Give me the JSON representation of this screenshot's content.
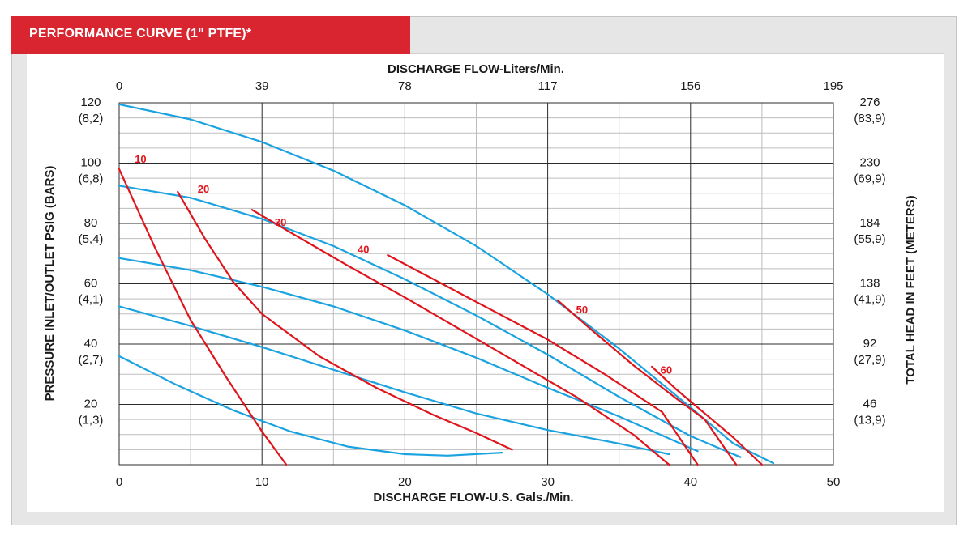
{
  "header": {
    "title": "PERFORMANCE CURVE  (1\" PTFE)*"
  },
  "chart_data": {
    "type": "line",
    "title": "PERFORMANCE CURVE  (1\" PTFE)*",
    "xlabel": "DISCHARGE FLOW-U.S. Gals./Min.",
    "x2label": "DISCHARGE FLOW-Liters/Min.",
    "ylabel": "PRESSURE INLET/OUTLET PSIG (BARS)",
    "y2label": "TOTAL HEAD IN FEET (METERS)",
    "xlim": [
      0,
      50
    ],
    "ylim": [
      0,
      120
    ],
    "grid": true,
    "x_ticks": [
      {
        "value": 0,
        "label": "0"
      },
      {
        "value": 10,
        "label": "10"
      },
      {
        "value": 20,
        "label": "20"
      },
      {
        "value": 30,
        "label": "30"
      },
      {
        "value": 40,
        "label": "40"
      },
      {
        "value": 50,
        "label": "50"
      }
    ],
    "x2_ticks": [
      {
        "value": 0,
        "label": "0"
      },
      {
        "value": 10,
        "label": "39"
      },
      {
        "value": 20,
        "label": "78"
      },
      {
        "value": 30,
        "label": "117"
      },
      {
        "value": 40,
        "label": "156"
      },
      {
        "value": 50,
        "label": "195"
      }
    ],
    "y_ticks": [
      {
        "value": 20,
        "label": "20",
        "sub": "(1,3)"
      },
      {
        "value": 40,
        "label": "40",
        "sub": "(2,7)"
      },
      {
        "value": 60,
        "label": "60",
        "sub": "(4,1)"
      },
      {
        "value": 80,
        "label": "80",
        "sub": "(5,4)"
      },
      {
        "value": 100,
        "label": "100",
        "sub": "(6,8)"
      },
      {
        "value": 120,
        "label": "120",
        "sub": "(8,2)"
      }
    ],
    "y2_ticks": [
      {
        "value": 20,
        "label": "46",
        "sub": "(13,9)"
      },
      {
        "value": 40,
        "label": "92",
        "sub": "(27,9)"
      },
      {
        "value": 60,
        "label": "138",
        "sub": "(41,9)"
      },
      {
        "value": 80,
        "label": "184",
        "sub": "(55,9)"
      },
      {
        "value": 100,
        "label": "230",
        "sub": "(69,9)"
      },
      {
        "value": 120,
        "label": "276",
        "sub": "(83,9)"
      }
    ],
    "series": [
      {
        "kind": "pressure-curve",
        "color": "#1aa3e0",
        "points": [
          [
            0,
            119.5
          ],
          [
            5,
            114.5
          ],
          [
            10,
            107
          ],
          [
            15,
            97.5
          ],
          [
            20,
            86
          ],
          [
            25,
            72.5
          ],
          [
            30,
            56.5
          ],
          [
            35,
            38.5
          ],
          [
            40,
            19
          ],
          [
            43,
            7
          ],
          [
            45.8,
            0.5
          ]
        ]
      },
      {
        "kind": "pressure-curve",
        "color": "#1aa3e0",
        "points": [
          [
            0,
            92.5
          ],
          [
            5,
            88.5
          ],
          [
            10,
            81.5
          ],
          [
            15,
            72.5
          ],
          [
            20,
            61.5
          ],
          [
            25,
            49.5
          ],
          [
            30,
            36.5
          ],
          [
            35,
            22.5
          ],
          [
            40,
            9.5
          ],
          [
            43.5,
            2.5
          ]
        ]
      },
      {
        "kind": "pressure-curve",
        "color": "#1aa3e0",
        "points": [
          [
            0,
            68.5
          ],
          [
            5,
            64.5
          ],
          [
            10,
            59
          ],
          [
            15,
            52.5
          ],
          [
            20,
            44.5
          ],
          [
            25,
            35.5
          ],
          [
            30,
            25.5
          ],
          [
            35,
            16
          ],
          [
            40.5,
            4.5
          ]
        ]
      },
      {
        "kind": "pressure-curve",
        "color": "#1aa3e0",
        "points": [
          [
            0,
            52.5
          ],
          [
            5,
            46
          ],
          [
            10,
            39
          ],
          [
            15,
            31.5
          ],
          [
            20,
            24
          ],
          [
            25,
            17
          ],
          [
            30,
            11.5
          ],
          [
            35,
            7
          ],
          [
            38.5,
            3.5
          ]
        ]
      },
      {
        "kind": "pressure-curve",
        "color": "#1aa3e0",
        "points": [
          [
            0,
            36
          ],
          [
            4,
            26.5
          ],
          [
            8,
            18
          ],
          [
            12,
            11
          ],
          [
            16,
            6
          ],
          [
            20,
            3.5
          ],
          [
            23,
            3
          ],
          [
            26.8,
            4
          ]
        ]
      },
      {
        "kind": "air-curve",
        "label": "10",
        "color": "#e0151c",
        "points": [
          [
            0,
            98
          ],
          [
            2.5,
            72
          ],
          [
            5,
            48
          ],
          [
            7.5,
            29
          ],
          [
            10,
            11
          ],
          [
            11.7,
            0
          ]
        ]
      },
      {
        "kind": "air-curve",
        "label": "20",
        "color": "#e0151c",
        "points": [
          [
            4.1,
            90.5
          ],
          [
            6,
            75
          ],
          [
            8,
            60.5
          ],
          [
            10,
            50
          ],
          [
            14,
            36
          ],
          [
            18,
            25.5
          ],
          [
            22,
            16.5
          ],
          [
            25,
            10.5
          ],
          [
            27.5,
            5
          ]
        ]
      },
      {
        "kind": "air-curve",
        "label": "30",
        "color": "#e0151c",
        "points": [
          [
            9.3,
            84.5
          ],
          [
            12,
            77
          ],
          [
            16,
            66
          ],
          [
            20,
            55.5
          ],
          [
            24,
            44.5
          ],
          [
            28,
            33.5
          ],
          [
            32,
            22.5
          ],
          [
            36,
            10
          ],
          [
            38.5,
            0
          ]
        ]
      },
      {
        "kind": "air-curve",
        "label": "40",
        "color": "#e0151c",
        "points": [
          [
            18.8,
            69.5
          ],
          [
            22,
            61.5
          ],
          [
            26,
            51.5
          ],
          [
            30,
            41.5
          ],
          [
            34,
            30
          ],
          [
            38,
            17.5
          ],
          [
            40.5,
            0
          ]
        ]
      },
      {
        "kind": "air-curve",
        "label": "50",
        "color": "#e0151c",
        "points": [
          [
            30.7,
            54.5
          ],
          [
            33,
            45
          ],
          [
            36,
            33
          ],
          [
            39,
            22
          ],
          [
            41,
            15
          ],
          [
            43.2,
            0
          ]
        ]
      },
      {
        "kind": "air-curve",
        "label": "60",
        "color": "#e0151c",
        "points": [
          [
            37.3,
            32.5
          ],
          [
            39,
            25
          ],
          [
            41,
            17
          ],
          [
            43,
            9
          ],
          [
            45,
            0
          ]
        ]
      }
    ],
    "curve_label_positions": [
      {
        "label": "10",
        "x": 1.5,
        "y": 101.5
      },
      {
        "label": "20",
        "x": 5.9,
        "y": 91.5
      },
      {
        "label": "30",
        "x": 11.3,
        "y": 80.5
      },
      {
        "label": "40",
        "x": 17.1,
        "y": 71.5
      },
      {
        "label": "50",
        "x": 32.4,
        "y": 51.5
      },
      {
        "label": "60",
        "x": 38.3,
        "y": 31.5
      }
    ]
  }
}
